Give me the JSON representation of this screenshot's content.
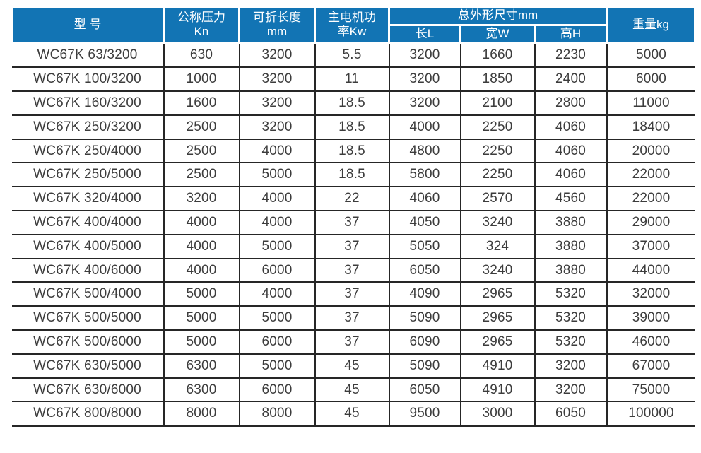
{
  "colors": {
    "header_bg": "#1274b4",
    "header_text": "#ffffff",
    "body_text": "#3c3c3c",
    "border": "#262626"
  },
  "table": {
    "headers": {
      "model": "型 号",
      "pressure": "公称压力\nKn",
      "length": "可折长度\nmm",
      "power": "主电机功\n率Kw",
      "dims_group": "总外形尺寸mm",
      "dim_l": "长L",
      "dim_w": "宽W",
      "dim_h": "高H",
      "weight": "重量kg"
    },
    "rows": [
      [
        "WC67K 63/3200",
        "630",
        "3200",
        "5.5",
        "3200",
        "1660",
        "2230",
        "5000"
      ],
      [
        "WC67K 100/3200",
        "1000",
        "3200",
        "11",
        "3200",
        "1850",
        "2400",
        "6000"
      ],
      [
        "WC67K 160/3200",
        "1600",
        "3200",
        "18.5",
        "3200",
        "2100",
        "2800",
        "11000"
      ],
      [
        "WC67K 250/3200",
        "2500",
        "3200",
        "18.5",
        "4000",
        "2250",
        "4060",
        "18400"
      ],
      [
        "WC67K 250/4000",
        "2500",
        "4000",
        "18.5",
        "4800",
        "2250",
        "4060",
        "20000"
      ],
      [
        "WC67K 250/5000",
        "2500",
        "5000",
        "18.5",
        "5800",
        "2250",
        "4060",
        "22000"
      ],
      [
        "WC67K 320/4000",
        "3200",
        "4000",
        "22",
        "4060",
        "2570",
        "4560",
        "22000"
      ],
      [
        "WC67K 400/4000",
        "4000",
        "4000",
        "37",
        "4050",
        "3240",
        "3880",
        "29000"
      ],
      [
        "WC67K 400/5000",
        "4000",
        "5000",
        "37",
        "5050",
        "324",
        "3880",
        "37000"
      ],
      [
        "WC67K 400/6000",
        "4000",
        "6000",
        "37",
        "6050",
        "3240",
        "3880",
        "44000"
      ],
      [
        "WC67K 500/4000",
        "5000",
        "4000",
        "37",
        "4090",
        "2965",
        "5320",
        "32000"
      ],
      [
        "WC67K 500/5000",
        "5000",
        "5000",
        "37",
        "5090",
        "2965",
        "5320",
        "39000"
      ],
      [
        "WC67K 500/6000",
        "5000",
        "6000",
        "37",
        "6090",
        "2965",
        "5320",
        "46000"
      ],
      [
        "WC67K 630/5000",
        "6300",
        "5000",
        "45",
        "5090",
        "4910",
        "3200",
        "67000"
      ],
      [
        "WC67K 630/6000",
        "6300",
        "6000",
        "45",
        "6050",
        "4910",
        "3200",
        "75000"
      ],
      [
        "WC67K 800/8000",
        "8000",
        "8000",
        "45",
        "9500",
        "3000",
        "6050",
        "100000"
      ]
    ]
  }
}
